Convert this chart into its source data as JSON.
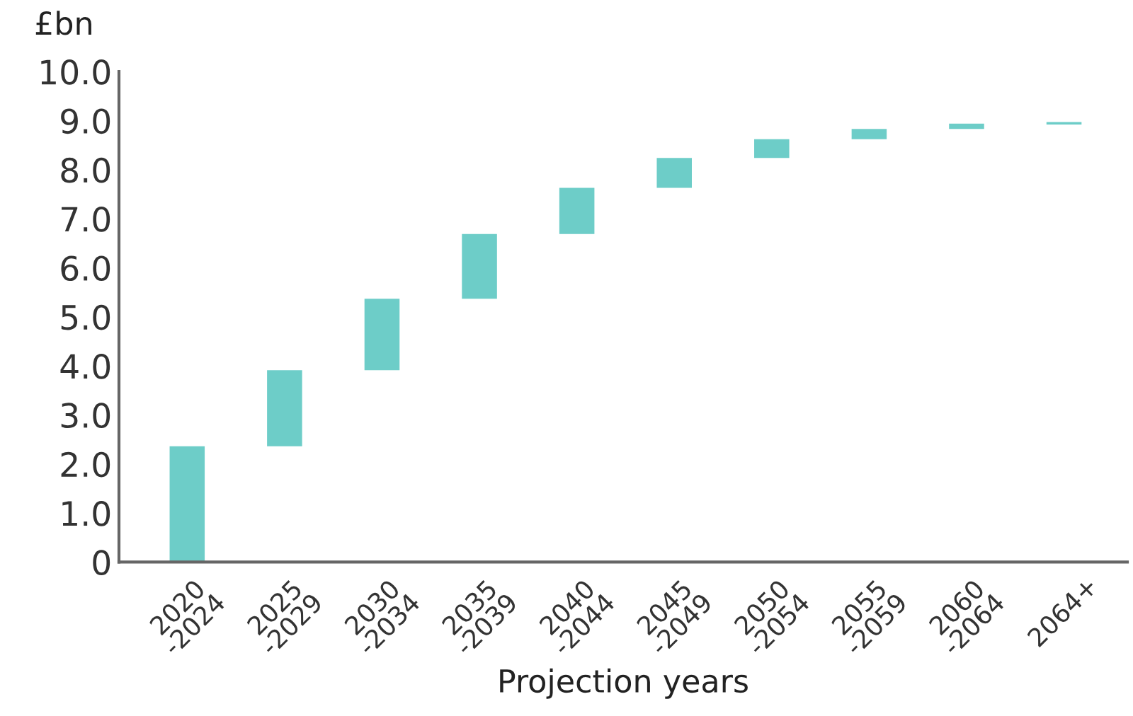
{
  "chart_data": {
    "type": "bar",
    "ylabel": "£bn",
    "xlabel": "Projection years",
    "categories": [
      "2020\n-2024",
      "2025\n-2029",
      "2030\n-2034",
      "2035\n-2039",
      "2040\n-2044",
      "2045\n-2049",
      "2050\n-2054",
      "2055\n-2059",
      "2060\n-2064",
      "2064+"
    ],
    "values": [
      2.36,
      1.55,
      1.46,
      1.32,
      0.94,
      0.61,
      0.38,
      0.21,
      0.11,
      0.05
    ],
    "base": [
      0,
      2.36,
      3.91,
      5.37,
      6.69,
      7.63,
      8.24,
      8.62,
      8.83,
      8.92
    ],
    "color": "#6dcdc8",
    "ylim": [
      0,
      10
    ],
    "yticks": [
      {
        "value": 0,
        "label": "0"
      },
      {
        "value": 1,
        "label": "1.0"
      },
      {
        "value": 2,
        "label": "2.0"
      },
      {
        "value": 3,
        "label": "3.0"
      },
      {
        "value": 4,
        "label": "4.0"
      },
      {
        "value": 5,
        "label": "5.0"
      },
      {
        "value": 6,
        "label": "6.0"
      },
      {
        "value": 7,
        "label": "7.0"
      },
      {
        "value": 8,
        "label": "8.0"
      },
      {
        "value": 9,
        "label": "9.0"
      },
      {
        "value": 10,
        "label": "10.0"
      }
    ],
    "grid": false
  }
}
